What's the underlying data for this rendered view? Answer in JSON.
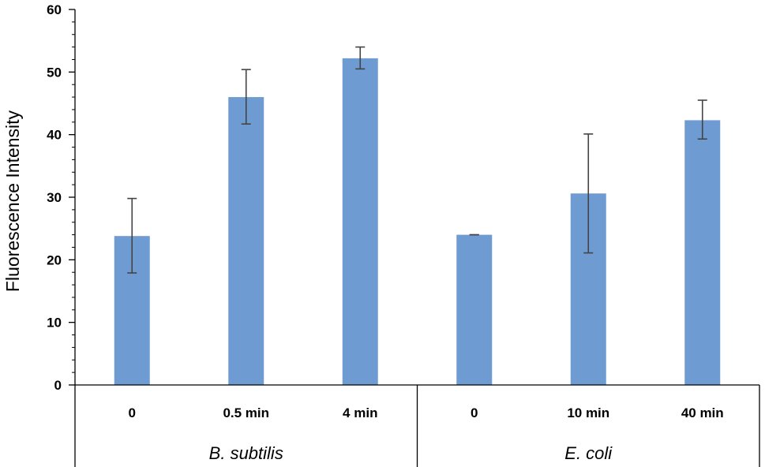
{
  "chart_data": {
    "type": "bar",
    "ylabel": "Fluorescence Intensity",
    "ylim": [
      0,
      60
    ],
    "yticks": [
      "0",
      "10",
      "20",
      "30",
      "40",
      "50",
      "60"
    ],
    "bar_color": "#6f9bd3",
    "grid": false,
    "groups": [
      {
        "name": "B. subtilis",
        "categories": [
          "0",
          "0.5 min",
          "4 min"
        ],
        "values": [
          23.8,
          46.0,
          52.2
        ],
        "error_low": [
          17.9,
          41.7,
          50.5
        ],
        "error_high": [
          29.8,
          50.4,
          54.0
        ]
      },
      {
        "name": "E. coli",
        "categories": [
          "0",
          "10 min",
          "40 min"
        ],
        "values": [
          24.0,
          30.6,
          42.3
        ],
        "error_low": [
          24.0,
          21.1,
          39.3
        ],
        "error_high": [
          24.0,
          40.1,
          45.5
        ]
      }
    ]
  }
}
